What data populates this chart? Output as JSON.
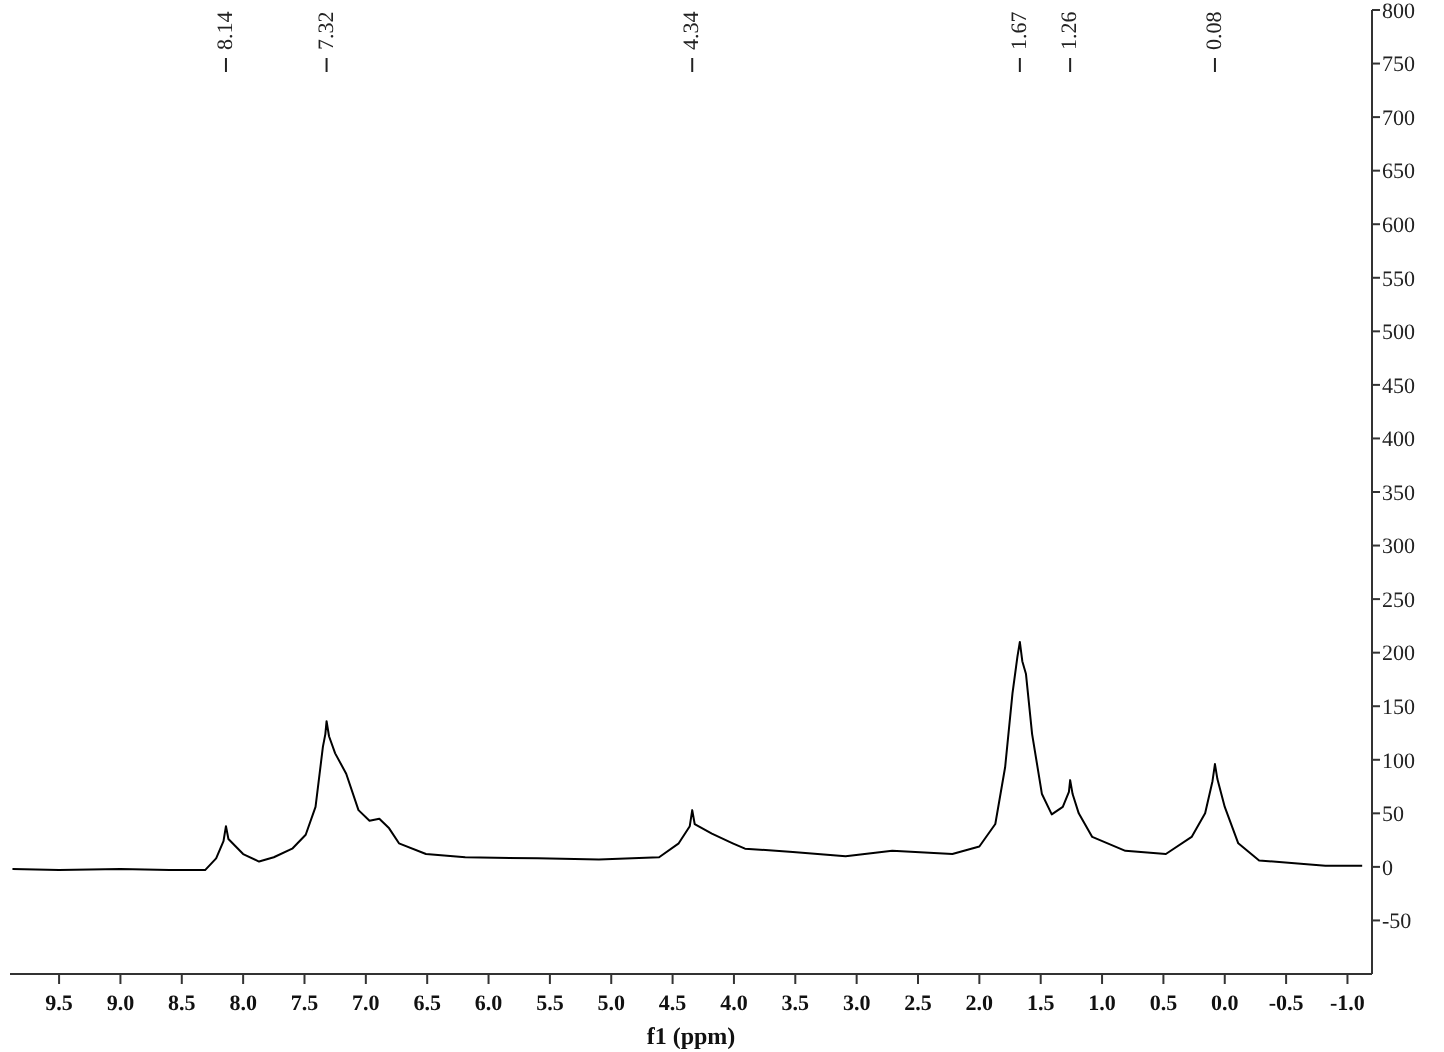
{
  "chart_data": {
    "type": "line",
    "xlabel": "f1 (ppm)",
    "color": "#000000",
    "marker": "none",
    "line_style": "solid",
    "x": [
      9.88,
      9.5,
      9.0,
      8.6,
      8.31,
      8.22,
      8.16,
      8.14,
      8.12,
      8.0,
      7.87,
      7.75,
      7.6,
      7.49,
      7.41,
      7.35,
      7.33,
      7.32,
      7.3,
      7.25,
      7.16,
      7.06,
      6.97,
      6.89,
      6.81,
      6.73,
      6.51,
      6.19,
      5.6,
      5.1,
      4.61,
      4.45,
      4.36,
      4.34,
      4.32,
      4.18,
      4.01,
      3.91,
      3.52,
      3.09,
      2.71,
      2.22,
      2.0,
      1.87,
      1.79,
      1.73,
      1.69,
      1.67,
      1.65,
      1.62,
      1.57,
      1.49,
      1.41,
      1.32,
      1.27,
      1.26,
      1.24,
      1.19,
      1.08,
      0.81,
      0.48,
      0.27,
      0.16,
      0.1,
      0.08,
      0.06,
      0.0,
      -0.11,
      -0.28,
      -0.82,
      -1.12
    ],
    "values": [
      -2,
      -3,
      -2,
      -3,
      -3,
      8,
      24,
      38,
      26,
      12,
      5,
      9,
      17,
      30,
      56,
      112,
      124,
      136,
      122,
      106,
      87,
      53,
      43,
      45,
      36,
      22,
      12,
      9,
      8,
      7,
      9,
      22,
      38,
      53,
      40,
      31,
      22,
      17,
      14,
      10,
      15,
      12,
      19,
      40,
      93,
      162,
      196,
      210,
      192,
      180,
      124,
      68,
      49,
      56,
      70,
      81,
      68,
      50,
      28,
      15,
      12,
      28,
      50,
      80,
      96,
      82,
      56,
      22,
      6,
      1,
      1
    ],
    "xlim": [
      9.9,
      -1.2
    ],
    "xticks": [
      9.5,
      {
        "value": 9,
        "label": "9.0"
      },
      8.5,
      {
        "value": 8,
        "label": "8.0"
      },
      7.5,
      {
        "value": 7,
        "label": "7.0"
      },
      6.5,
      {
        "value": 6,
        "label": "6.0"
      },
      5.5,
      {
        "value": 5,
        "label": "5.0"
      },
      4.5,
      {
        "value": 4,
        "label": "4.0"
      },
      3.5,
      {
        "value": 3,
        "label": "3.0"
      },
      2.5,
      {
        "value": 2,
        "label": "2.0"
      },
      1.5,
      {
        "value": 1,
        "label": "1.0"
      },
      0.5,
      {
        "value": 0,
        "label": "0.0"
      },
      -0.5,
      {
        "value": -1,
        "label": "-1.0"
      }
    ],
    "ylim": [
      -100,
      800
    ],
    "yticks": [
      -50,
      0,
      50,
      100,
      150,
      200,
      250,
      300,
      350,
      400,
      450,
      500,
      550,
      600,
      650,
      700,
      750,
      800
    ],
    "annotations": [
      {
        "text": "8.14",
        "x": 8.14
      },
      {
        "text": "7.32",
        "x": 7.32
      },
      {
        "text": "4.34",
        "x": 4.34
      },
      {
        "text": "1.67",
        "x": 1.67
      },
      {
        "text": "1.26",
        "x": 1.26
      },
      {
        "text": "0.08",
        "x": 0.08
      }
    ]
  }
}
